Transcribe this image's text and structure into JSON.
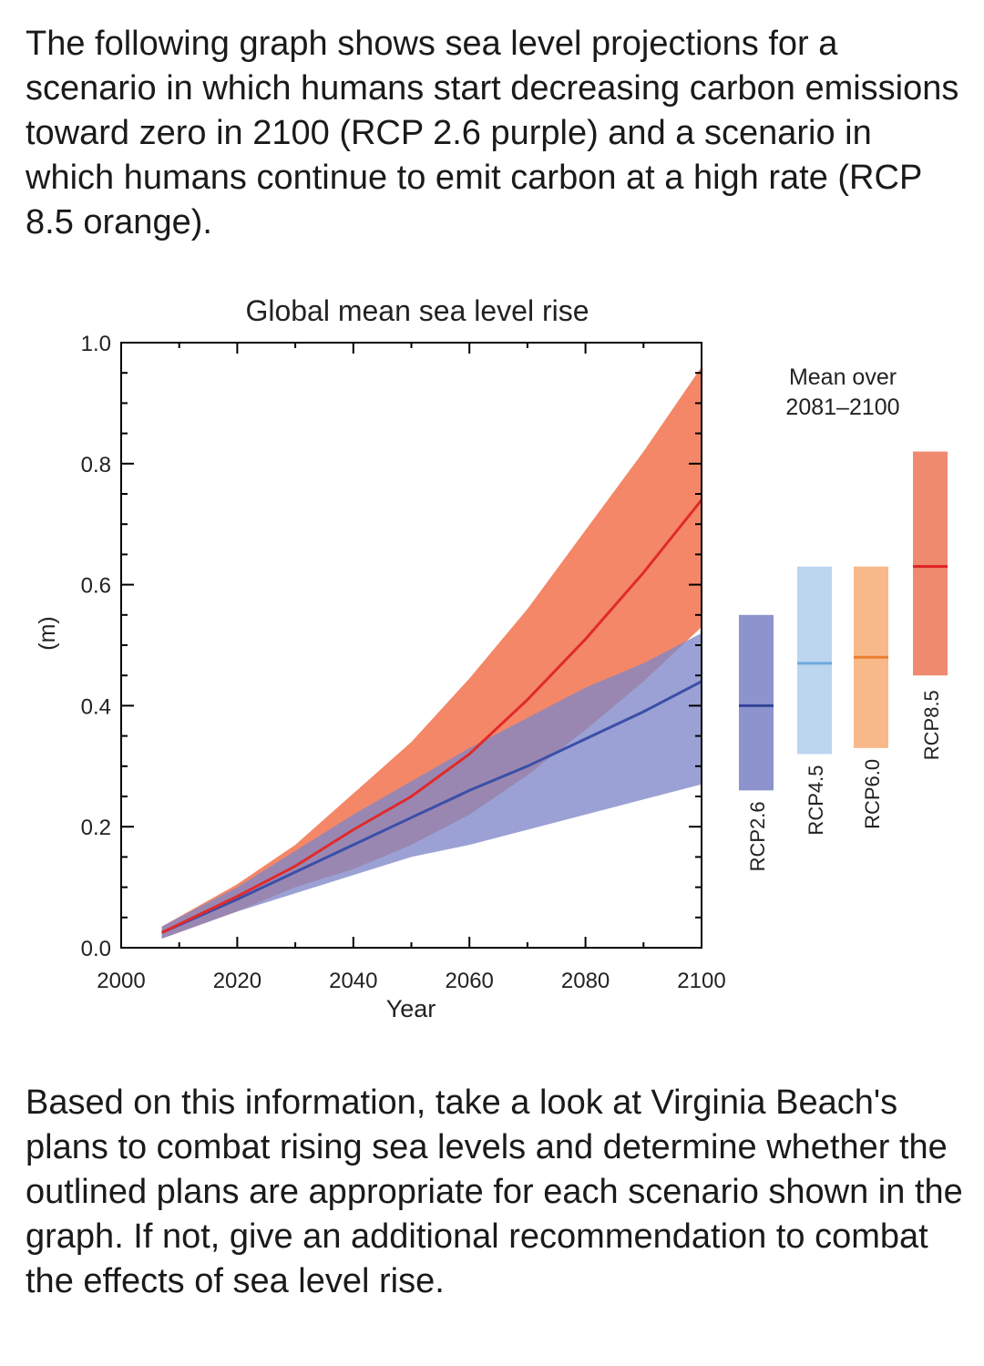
{
  "intro_text": "The following graph shows sea level projections for a scenario in which humans start decreasing carbon emissions toward zero in 2100 (RCP 2.6 purple) and a scenario in which humans continue to emit carbon at a high rate (RCP 8.5 orange).",
  "outro_text": "Based on this information, take a look at Virginia Beach's plans to combat rising sea levels and determine whether the outlined plans are appropriate for each scenario shown in the graph. If not, give an additional recommendation to combat the effects of sea level rise.",
  "chart_data": {
    "type": "line",
    "title": "Global mean sea level rise",
    "xlabel": "Year",
    "ylabel": "(m)",
    "xlim": [
      2000,
      2100
    ],
    "ylim": [
      0.0,
      1.0
    ],
    "x_ticks": [
      "2000",
      "2020",
      "2040",
      "2060",
      "2080",
      "2100"
    ],
    "y_ticks": [
      "0.0",
      "0.2",
      "0.4",
      "0.6",
      "0.8",
      "1.0"
    ],
    "grid": false,
    "series": [
      {
        "name": "RCP2.6",
        "color": "#3b4fa8",
        "band_color": "#7f86c8",
        "x": [
          2007,
          2020,
          2030,
          2040,
          2050,
          2060,
          2070,
          2080,
          2090,
          2100
        ],
        "mean": [
          0.025,
          0.08,
          0.125,
          0.17,
          0.215,
          0.26,
          0.3,
          0.345,
          0.39,
          0.44
        ],
        "lower": [
          0.015,
          0.06,
          0.09,
          0.12,
          0.15,
          0.17,
          0.195,
          0.22,
          0.245,
          0.27
        ],
        "upper": [
          0.035,
          0.1,
          0.16,
          0.22,
          0.275,
          0.33,
          0.38,
          0.43,
          0.47,
          0.52
        ]
      },
      {
        "name": "RCP8.5",
        "color": "#e02a2a",
        "band_color": "#f3815f",
        "x": [
          2007,
          2020,
          2030,
          2040,
          2050,
          2060,
          2070,
          2080,
          2090,
          2100
        ],
        "mean": [
          0.025,
          0.085,
          0.135,
          0.195,
          0.25,
          0.32,
          0.41,
          0.51,
          0.62,
          0.74
        ],
        "lower": [
          0.015,
          0.06,
          0.1,
          0.13,
          0.17,
          0.22,
          0.285,
          0.36,
          0.44,
          0.53
        ],
        "upper": [
          0.035,
          0.105,
          0.17,
          0.255,
          0.34,
          0.445,
          0.56,
          0.69,
          0.82,
          0.96
        ]
      }
    ],
    "bars_title_lines": [
      "Mean over",
      "2081–2100"
    ],
    "bars": [
      {
        "label": "RCP2.6",
        "low": 0.26,
        "high": 0.55,
        "mean": 0.4,
        "color": "#8d93cc",
        "mean_color": "#34449a"
      },
      {
        "label": "RCP4.5",
        "low": 0.32,
        "high": 0.63,
        "mean": 0.47,
        "color": "#bcd6f0",
        "mean_color": "#6fa8dc"
      },
      {
        "label": "RCP6.0",
        "low": 0.33,
        "high": 0.63,
        "mean": 0.48,
        "color": "#f8b98a",
        "mean_color": "#ea7d2e"
      },
      {
        "label": "RCP8.5",
        "low": 0.45,
        "high": 0.82,
        "mean": 0.63,
        "color": "#f08a6e",
        "mean_color": "#de2222"
      }
    ]
  }
}
